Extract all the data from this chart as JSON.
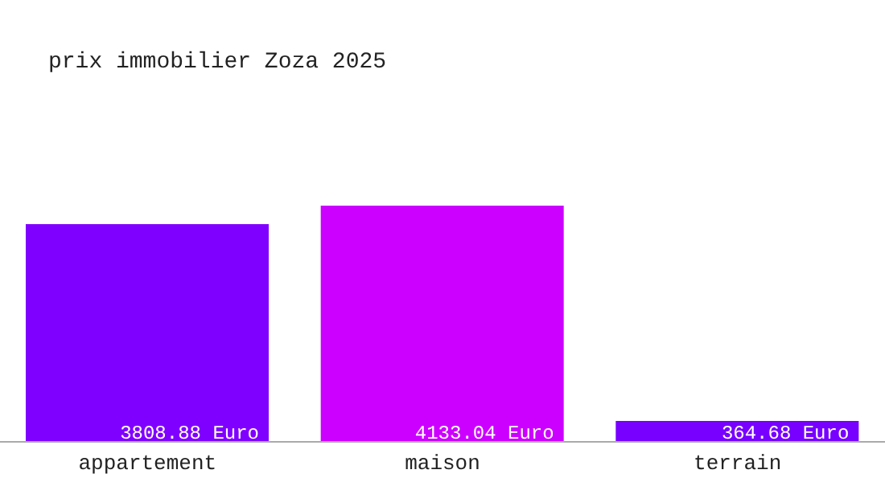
{
  "chart_data": {
    "type": "bar",
    "title": "prix immobilier Zoza 2025",
    "categories": [
      "appartement",
      "maison",
      "terrain"
    ],
    "values": [
      3808.88,
      4133.04,
      364.68
    ],
    "colors": [
      "#8000ff",
      "#cc00ff",
      "#7700ff"
    ],
    "value_labels": [
      "3808.88 Euro",
      "4133.04 Euro",
      "364.68 Euro"
    ]
  }
}
